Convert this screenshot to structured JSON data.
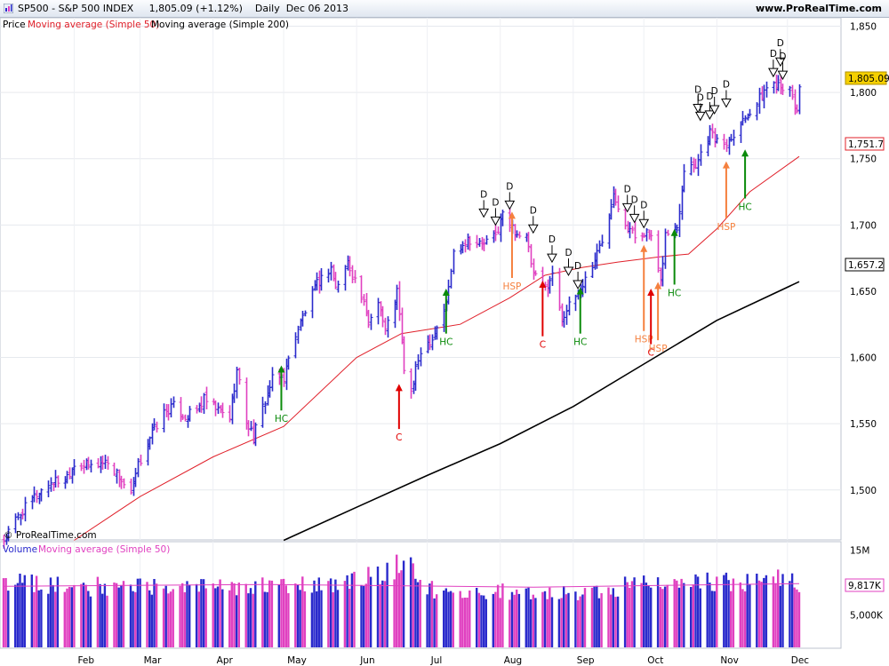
{
  "header": {
    "title": "SP500 - S&P 500 INDEX     1,805.09 (+1.12%)    Daily  Dec 06 2013",
    "site": "www.ProRealTime.com"
  },
  "price_panel": {
    "legend_price": "Price",
    "legend_ma50": "Moving average (Simple 50)",
    "legend_ma200": "Moving average (Simple 200)",
    "watermark": "© ProRealTime.com",
    "last_price_tag": "1,805.09",
    "ma50_tag": "1,751.7",
    "ma200_tag": "1,657.2"
  },
  "volume_panel": {
    "legend_volume": "Volume",
    "legend_ma": "Moving average (Simple 50)",
    "ma_tag": "9,817K"
  },
  "colors": {
    "up": "#2a2acc",
    "down": "#e040c0",
    "ma50": "#e0202a",
    "ma200": "#000000",
    "hc": "#0a8a0a",
    "c": "#e00000",
    "hsp": "#f5803e",
    "tag_bg": "#f5d000"
  },
  "chart_data": [
    {
      "type": "ohlc",
      "title": "SP500 - S&P 500 INDEX",
      "x_ticks": [
        "Feb",
        "Mar",
        "Apr",
        "May",
        "Jun",
        "Jul",
        "Aug",
        "Sep",
        "Oct",
        "Nov",
        "Dec"
      ],
      "y_ticks": [
        "1,850",
        "1,800",
        "1,750",
        "1,700",
        "1,650",
        "1,600",
        "1,550",
        "1,500"
      ],
      "y_tick_values": [
        1850,
        1800,
        1750,
        1700,
        1650,
        1600,
        1550,
        1500
      ],
      "ylim": [
        1463,
        1855
      ],
      "x_range": [
        "2013-01-02",
        "2013-12-06"
      ],
      "close_points": [
        [
          "2013-01-02",
          1462
        ],
        [
          "2013-01-08",
          1480
        ],
        [
          "2013-01-15",
          1495
        ],
        [
          "2013-01-22",
          1506
        ],
        [
          "2013-01-28",
          1508
        ],
        [
          "2013-02-01",
          1520
        ],
        [
          "2013-02-08",
          1518
        ],
        [
          "2013-02-15",
          1522
        ],
        [
          "2013-02-20",
          1510
        ],
        [
          "2013-02-25",
          1495
        ],
        [
          "2013-02-28",
          1518
        ],
        [
          "2013-03-05",
          1540
        ],
        [
          "2013-03-11",
          1558
        ],
        [
          "2013-03-15",
          1563
        ],
        [
          "2013-03-20",
          1555
        ],
        [
          "2013-03-25",
          1560
        ],
        [
          "2013-03-28",
          1568
        ],
        [
          "2013-04-03",
          1560
        ],
        [
          "2013-04-08",
          1555
        ],
        [
          "2013-04-11",
          1590
        ],
        [
          "2013-04-15",
          1552
        ],
        [
          "2013-04-18",
          1540
        ],
        [
          "2013-04-22",
          1562
        ],
        [
          "2013-04-26",
          1583
        ],
        [
          "2013-05-01",
          1585
        ],
        [
          "2013-05-06",
          1618
        ],
        [
          "2013-05-10",
          1635
        ],
        [
          "2013-05-15",
          1655
        ],
        [
          "2013-05-21",
          1668
        ],
        [
          "2013-05-23",
          1652
        ],
        [
          "2013-05-28",
          1672
        ],
        [
          "2013-06-03",
          1645
        ],
        [
          "2013-06-06",
          1626
        ],
        [
          "2013-06-10",
          1645
        ],
        [
          "2013-06-13",
          1620
        ],
        [
          "2013-06-18",
          1650
        ],
        [
          "2013-06-21",
          1592
        ],
        [
          "2013-06-24",
          1573
        ],
        [
          "2013-06-28",
          1606
        ],
        [
          "2013-07-03",
          1615
        ],
        [
          "2013-07-09",
          1640
        ],
        [
          "2013-07-12",
          1679
        ],
        [
          "2013-07-18",
          1690
        ],
        [
          "2013-07-24",
          1685
        ],
        [
          "2013-07-30",
          1692
        ],
        [
          "2013-08-02",
          1708
        ],
        [
          "2013-08-07",
          1695
        ],
        [
          "2013-08-12",
          1690
        ],
        [
          "2013-08-15",
          1662
        ],
        [
          "2013-08-20",
          1652
        ],
        [
          "2013-08-23",
          1662
        ],
        [
          "2013-08-27",
          1631
        ],
        [
          "2013-08-30",
          1638
        ],
        [
          "2013-09-04",
          1652
        ],
        [
          "2013-09-09",
          1670
        ],
        [
          "2013-09-13",
          1688
        ],
        [
          "2013-09-18",
          1725
        ],
        [
          "2013-09-23",
          1702
        ],
        [
          "2013-09-27",
          1691
        ],
        [
          "2013-10-01",
          1695
        ],
        [
          "2013-10-04",
          1690
        ],
        [
          "2013-10-08",
          1655
        ],
        [
          "2013-10-10",
          1693
        ],
        [
          "2013-10-15",
          1698
        ],
        [
          "2013-10-18",
          1744
        ],
        [
          "2013-10-23",
          1746
        ],
        [
          "2013-10-29",
          1771
        ],
        [
          "2013-11-01",
          1762
        ],
        [
          "2013-11-05",
          1762
        ],
        [
          "2013-11-08",
          1770
        ],
        [
          "2013-11-13",
          1782
        ],
        [
          "2013-11-18",
          1792
        ],
        [
          "2013-11-22",
          1804
        ],
        [
          "2013-11-27",
          1808
        ],
        [
          "2013-12-02",
          1800
        ],
        [
          "2013-12-05",
          1785
        ],
        [
          "2013-12-06",
          1805
        ]
      ],
      "series": [
        {
          "name": "Moving average (Simple 50)",
          "points": [
            [
              "2013-02-01",
              1462
            ],
            [
              "2013-03-01",
              1495
            ],
            [
              "2013-04-01",
              1525
            ],
            [
              "2013-05-01",
              1548
            ],
            [
              "2013-06-01",
              1600
            ],
            [
              "2013-06-20",
              1618
            ],
            [
              "2013-07-15",
              1625
            ],
            [
              "2013-08-05",
              1645
            ],
            [
              "2013-08-20",
              1662
            ],
            [
              "2013-09-05",
              1668
            ],
            [
              "2013-09-20",
              1672
            ],
            [
              "2013-10-08",
              1676
            ],
            [
              "2013-10-20",
              1678
            ],
            [
              "2013-11-01",
              1697
            ],
            [
              "2013-11-15",
              1725
            ],
            [
              "2013-12-06",
              1751.7
            ]
          ]
        },
        {
          "name": "Moving average (Simple 200)",
          "points": [
            [
              "2013-05-01",
              1462
            ],
            [
              "2013-06-01",
              1487
            ],
            [
              "2013-07-01",
              1511
            ],
            [
              "2013-08-01",
              1535
            ],
            [
              "2013-09-01",
              1563
            ],
            [
              "2013-10-01",
              1595
            ],
            [
              "2013-11-01",
              1628
            ],
            [
              "2013-12-06",
              1657.2
            ]
          ]
        }
      ],
      "annotations": [
        {
          "label": "HC",
          "date": "2013-04-30",
          "kind": "up",
          "from": 1560,
          "to": 1594
        },
        {
          "label": "C",
          "date": "2013-06-19",
          "kind": "up",
          "from": 1546,
          "to": 1580
        },
        {
          "label": "HC",
          "date": "2013-07-09",
          "kind": "up",
          "from": 1618,
          "to": 1652
        },
        {
          "label": "HSP",
          "date": "2013-08-06",
          "kind": "up",
          "from": 1660,
          "to": 1710
        },
        {
          "label": "C",
          "date": "2013-08-19",
          "kind": "up",
          "from": 1616,
          "to": 1658
        },
        {
          "label": "HC",
          "date": "2013-09-04",
          "kind": "up",
          "from": 1618,
          "to": 1653
        },
        {
          "label": "HSP",
          "date": "2013-10-01",
          "kind": "up",
          "from": 1620,
          "to": 1685
        },
        {
          "label": "C",
          "date": "2013-10-04",
          "kind": "up",
          "from": 1610,
          "to": 1652
        },
        {
          "label": "HSP",
          "date": "2013-10-07",
          "kind": "up",
          "from": 1613,
          "to": 1657
        },
        {
          "label": "HC",
          "date": "2013-10-14",
          "kind": "up",
          "from": 1655,
          "to": 1697
        },
        {
          "label": "HSP",
          "date": "2013-11-05",
          "kind": "up",
          "from": 1705,
          "to": 1748
        },
        {
          "label": "HC",
          "date": "2013-11-13",
          "kind": "up",
          "from": 1720,
          "to": 1757
        },
        {
          "label": "D",
          "date": "2013-07-25",
          "kind": "down",
          "at": 1706
        },
        {
          "label": "D",
          "date": "2013-07-30",
          "kind": "down",
          "at": 1700
        },
        {
          "label": "D",
          "date": "2013-08-05",
          "kind": "down",
          "at": 1712
        },
        {
          "label": "D",
          "date": "2013-08-15",
          "kind": "down",
          "at": 1694
        },
        {
          "label": "D",
          "date": "2013-08-23",
          "kind": "down",
          "at": 1672
        },
        {
          "label": "D",
          "date": "2013-08-30",
          "kind": "down",
          "at": 1662
        },
        {
          "label": "D",
          "date": "2013-09-03",
          "kind": "down",
          "at": 1652
        },
        {
          "label": "D",
          "date": "2013-09-24",
          "kind": "down",
          "at": 1710
        },
        {
          "label": "D",
          "date": "2013-09-27",
          "kind": "down",
          "at": 1702
        },
        {
          "label": "D",
          "date": "2013-10-01",
          "kind": "down",
          "at": 1698
        },
        {
          "label": "D",
          "date": "2013-10-24",
          "kind": "down",
          "at": 1785
        },
        {
          "label": "D",
          "date": "2013-10-25",
          "kind": "down",
          "at": 1779
        },
        {
          "label": "D",
          "date": "2013-10-29",
          "kind": "down",
          "at": 1780
        },
        {
          "label": "D",
          "date": "2013-10-31",
          "kind": "down",
          "at": 1784
        },
        {
          "label": "D",
          "date": "2013-11-05",
          "kind": "down",
          "at": 1789
        },
        {
          "label": "D",
          "date": "2013-11-25",
          "kind": "down",
          "at": 1812
        },
        {
          "label": "D",
          "date": "2013-11-28",
          "kind": "down",
          "at": 1820
        },
        {
          "label": "D",
          "date": "2013-11-29",
          "kind": "down",
          "at": 1810
        }
      ]
    },
    {
      "type": "bar",
      "title": "Volume",
      "y_ticks": [
        "15M",
        "5,000K"
      ],
      "y_tick_values": [
        15000,
        5000
      ],
      "ylim": [
        0,
        16000
      ],
      "unit": "K",
      "ma50_level": 9817,
      "volume_points": [
        [
          "2013-01-02",
          10200
        ],
        [
          "2013-02-01",
          9500
        ],
        [
          "2013-03-01",
          9700
        ],
        [
          "2013-04-01",
          9300
        ],
        [
          "2013-05-01",
          9800
        ],
        [
          "2013-06-01",
          10300
        ],
        [
          "2013-06-20",
          13000
        ],
        [
          "2013-06-21",
          15300
        ],
        [
          "2013-07-01",
          9200
        ],
        [
          "2013-08-01",
          8700
        ],
        [
          "2013-09-01",
          8600
        ],
        [
          "2013-10-01",
          9900
        ],
        [
          "2013-10-10",
          11000
        ],
        [
          "2013-11-01",
          10000
        ],
        [
          "2013-12-02",
          11000
        ],
        [
          "2013-12-06",
          10100
        ]
      ]
    }
  ]
}
